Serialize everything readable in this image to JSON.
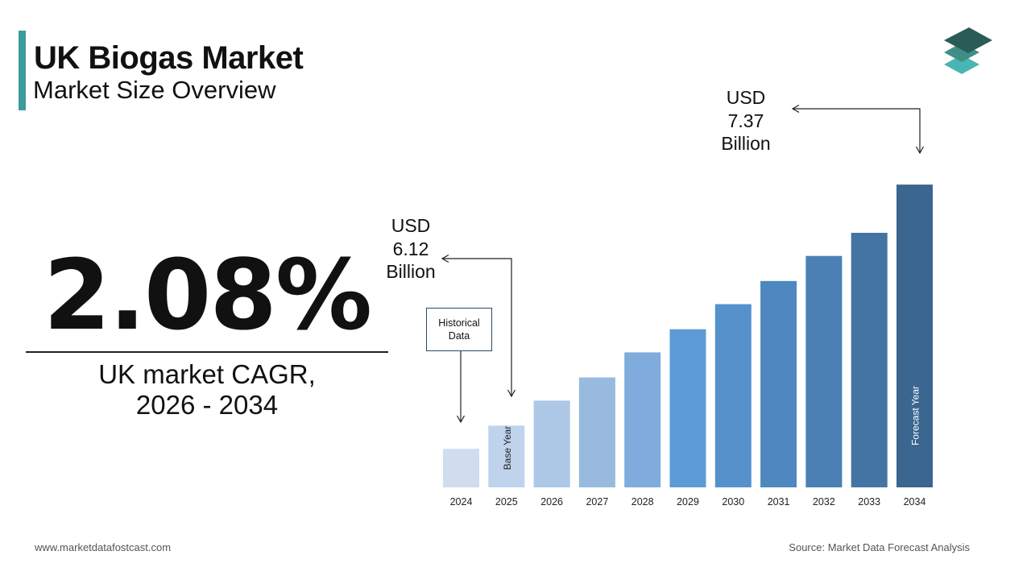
{
  "header": {
    "title": "UK Biogas Market",
    "subtitle": "Market Size Overview"
  },
  "cagr": {
    "value": "2.08%",
    "label_line1": "UK market CAGR,",
    "label_line2": "2026 - 2034"
  },
  "callouts": {
    "base": {
      "line1": "USD",
      "line2": "6.12",
      "line3": "Billion"
    },
    "forecast": {
      "line1": "USD",
      "line2": "7.37",
      "line3": "Billion"
    },
    "historical_line1": "Historical",
    "historical_line2": "Data"
  },
  "footer": {
    "website": "www.marketdatafostcast.com",
    "source": "Source: Market Data Forecast Analysis"
  },
  "colors": {
    "accent": "#3b9c9c",
    "logo_dark": "#2a5b57",
    "logo_mid": "#3f8f88",
    "logo_light": "#4ab6b3"
  },
  "chart_data": {
    "type": "bar",
    "categories": [
      "2024",
      "2025",
      "2026",
      "2027",
      "2028",
      "2029",
      "2030",
      "2031",
      "2032",
      "2033",
      "2034"
    ],
    "values": [
      6.0,
      6.12,
      6.25,
      6.37,
      6.5,
      6.62,
      6.75,
      6.87,
      7.0,
      7.12,
      7.37
    ],
    "bar_colors": [
      "#d0ddef",
      "#bfd3ec",
      "#adc7e6",
      "#98badf",
      "#7fabdd",
      "#5c9bd6",
      "#5592cc",
      "#4f87bf",
      "#4a80b4",
      "#4474a4",
      "#3a6690"
    ],
    "bar_text": {
      "1": "Base Year",
      "10": "Forecast Year"
    },
    "ylim": [
      5.8,
      7.45
    ],
    "grid": false,
    "legend": "none"
  }
}
